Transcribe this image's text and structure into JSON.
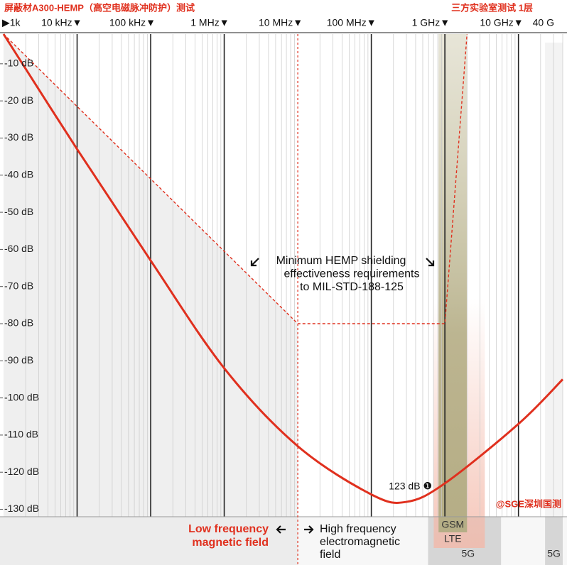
{
  "chart_data": {
    "type": "line",
    "title": "屏蔽材A300-HEMP（高空电磁脉冲防护）测试",
    "subtitle": "三方实验室测试 1层",
    "x_scale": "log",
    "xlim": [
      1000,
      40000000000
    ],
    "xticks": [
      {
        "value": 1000,
        "label": "▶1k"
      },
      {
        "value": 10000,
        "label": "10 kHz▼"
      },
      {
        "value": 100000,
        "label": "100 kHz▼"
      },
      {
        "value": 1000000,
        "label": "1 MHz▼"
      },
      {
        "value": 10000000,
        "label": "10 MHz▼"
      },
      {
        "value": 100000000,
        "label": "100 MHz▼"
      },
      {
        "value": 1000000000,
        "label": "1 GHz▼"
      },
      {
        "value": 10000000000,
        "label": "10 GHz▼"
      },
      {
        "value": 40000000000,
        "label": "40 G"
      }
    ],
    "ylim": [
      -132,
      -2
    ],
    "yticks": [
      {
        "value": -10,
        "label": "-10 dB"
      },
      {
        "value": -20,
        "label": "-20 dB"
      },
      {
        "value": -30,
        "label": "-30 dB"
      },
      {
        "value": -40,
        "label": "-40 dB"
      },
      {
        "value": -50,
        "label": "-50 dB"
      },
      {
        "value": -60,
        "label": "-60 dB"
      },
      {
        "value": -70,
        "label": "-70 dB"
      },
      {
        "value": -80,
        "label": "-80 dB"
      },
      {
        "value": -90,
        "label": "-90 dB"
      },
      {
        "value": -100,
        "label": "-100 dB"
      },
      {
        "value": -110,
        "label": "-110 dB"
      },
      {
        "value": -120,
        "label": "-120 dB"
      },
      {
        "value": -130,
        "label": "-130 dB"
      }
    ],
    "minor_grid": true,
    "color": "#e0301e",
    "x": [
      1000,
      10000,
      100000,
      1000000,
      10000000,
      100000000,
      300000000,
      1000000000,
      10000000000,
      40000000000
    ],
    "values": [
      -2,
      -33,
      -63,
      -92,
      -113,
      -126,
      -128,
      -123,
      -107,
      -95
    ],
    "requirement": {
      "lines": [
        "Minimum HEMP shielding",
        "effectiveness requirements",
        "to MIL-STD-188-125"
      ],
      "x": [
        1000,
        10000000,
        1000000000,
        2000000000
      ],
      "values": [
        -2,
        -80,
        -80,
        -2
      ]
    },
    "min_label": "123 dB ❶",
    "divider_x": 10000000,
    "low_label": [
      "Low frequency",
      "magnetic field"
    ],
    "high_label": [
      "High frequency",
      "electromagnetic",
      "field"
    ],
    "bands": [
      {
        "labels": [
          "5G"
        ],
        "x": [
          590000000,
          5800000000
        ]
      },
      {
        "labels": [
          "GSM",
          "LTE"
        ],
        "x": [
          820000000,
          2000000000
        ]
      },
      {
        "labels": [
          "5G"
        ],
        "x": [
          23000000000,
          40000000000
        ]
      }
    ],
    "watermark": "@SGE深圳国测"
  }
}
